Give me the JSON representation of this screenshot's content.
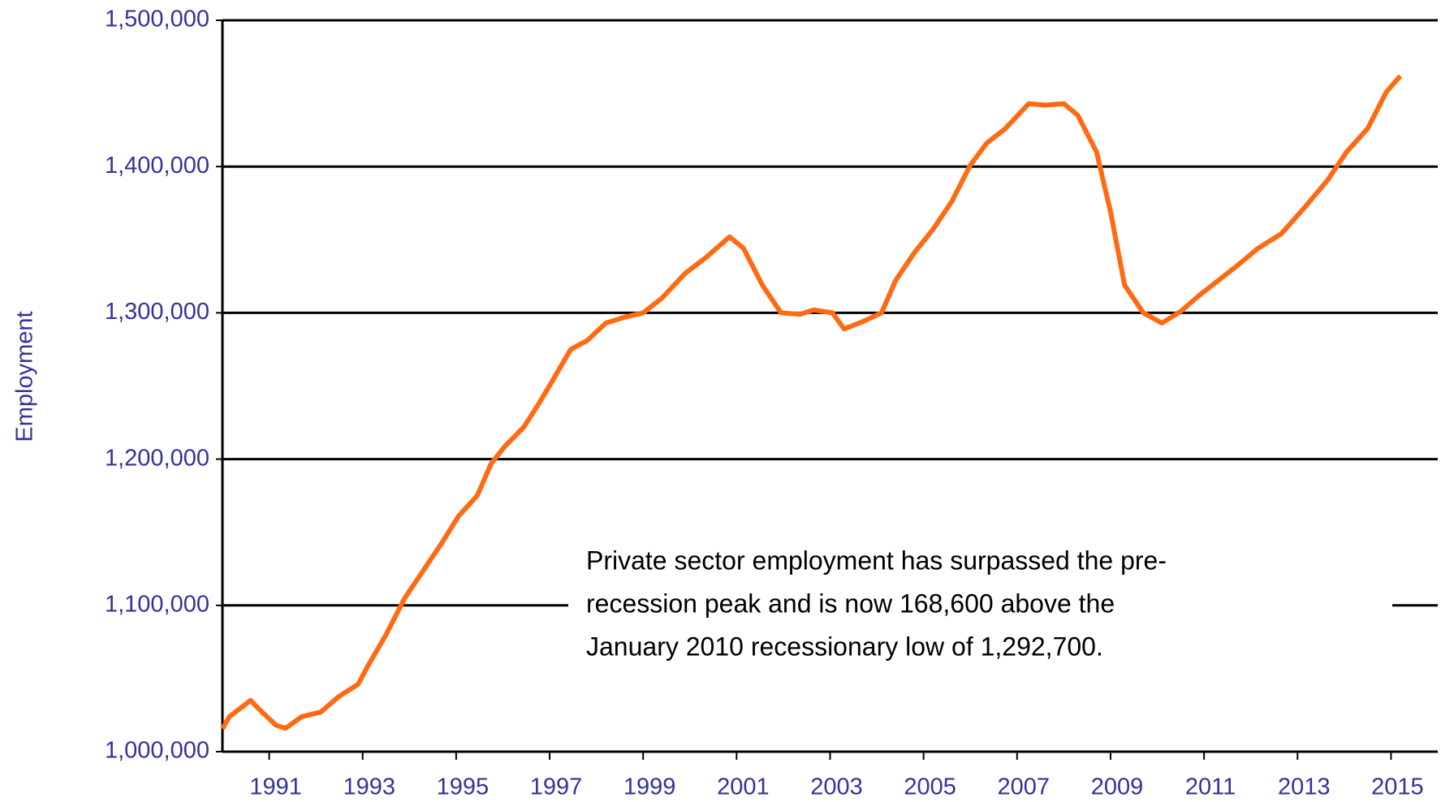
{
  "chart_data": {
    "type": "line",
    "y_label": "Employment",
    "annotation": [
      "Private sector employment has surpassed the pre-",
      "recession peak and is now 168,600 above the",
      "January 2010 recessionary low of 1,292,700."
    ],
    "x": [
      1990.0,
      1990.15,
      1990.6,
      1990.85,
      1991.15,
      1991.35,
      1991.7,
      1992.1,
      1992.5,
      1992.9,
      1993.1,
      1993.5,
      1993.9,
      1994.3,
      1994.7,
      1995.05,
      1995.45,
      1995.75,
      1996.05,
      1996.45,
      1996.75,
      1997.05,
      1997.45,
      1997.8,
      1998.2,
      1998.6,
      1999.0,
      1999.4,
      1999.9,
      2000.35,
      2000.85,
      2001.15,
      2001.55,
      2001.95,
      2002.35,
      2002.65,
      2003.05,
      2003.3,
      2003.7,
      2004.1,
      2004.4,
      2004.8,
      2005.2,
      2005.6,
      2006.0,
      2006.35,
      2006.75,
      2007.25,
      2007.6,
      2008.0,
      2008.3,
      2008.7,
      2009.0,
      2009.3,
      2009.7,
      2010.1,
      2010.5,
      2010.9,
      2011.3,
      2011.7,
      2012.15,
      2012.65,
      2013.15,
      2013.65,
      2014.05,
      2014.5,
      2014.9,
      2015.2
    ],
    "series": [
      {
        "name": "Private sector employment",
        "color": "#ff6a13",
        "values": [
          1015700,
          1024000,
          1035000,
          1027000,
          1018000,
          1016000,
          1024000,
          1027000,
          1038000,
          1046000,
          1058000,
          1080000,
          1105000,
          1124000,
          1143000,
          1161000,
          1175000,
          1197000,
          1209000,
          1222000,
          1237000,
          1253000,
          1275000,
          1281000,
          1293000,
          1297000,
          1300000,
          1310000,
          1327000,
          1338000,
          1352000,
          1344000,
          1319000,
          1300000,
          1299000,
          1302000,
          1300000,
          1289000,
          1294000,
          1300000,
          1322000,
          1341000,
          1357000,
          1376000,
          1401000,
          1416000,
          1426000,
          1443000,
          1442000,
          1443000,
          1435000,
          1410000,
          1369000,
          1319000,
          1300000,
          1293000,
          1301000,
          1312000,
          1322000,
          1332000,
          1344000,
          1354000,
          1372000,
          1391000,
          1410000,
          1426000,
          1451000,
          1462000
        ]
      }
    ],
    "xlim": [
      1990,
      2016
    ],
    "ylim": [
      1000000,
      1500000
    ],
    "xticks": [
      1991,
      1993,
      1995,
      1997,
      1999,
      2001,
      2003,
      2005,
      2007,
      2009,
      2011,
      2013,
      2015
    ],
    "yticks": [
      {
        "value": 1000000,
        "label": "1,000,000"
      },
      {
        "value": 1100000,
        "label": "1,100,000"
      },
      {
        "value": 1200000,
        "label": "1,200,000"
      },
      {
        "value": 1300000,
        "label": "1,300,000"
      },
      {
        "value": 1400000,
        "label": "1,400,000"
      },
      {
        "value": 1500000,
        "label": "1,500,000"
      }
    ],
    "grid": true
  }
}
